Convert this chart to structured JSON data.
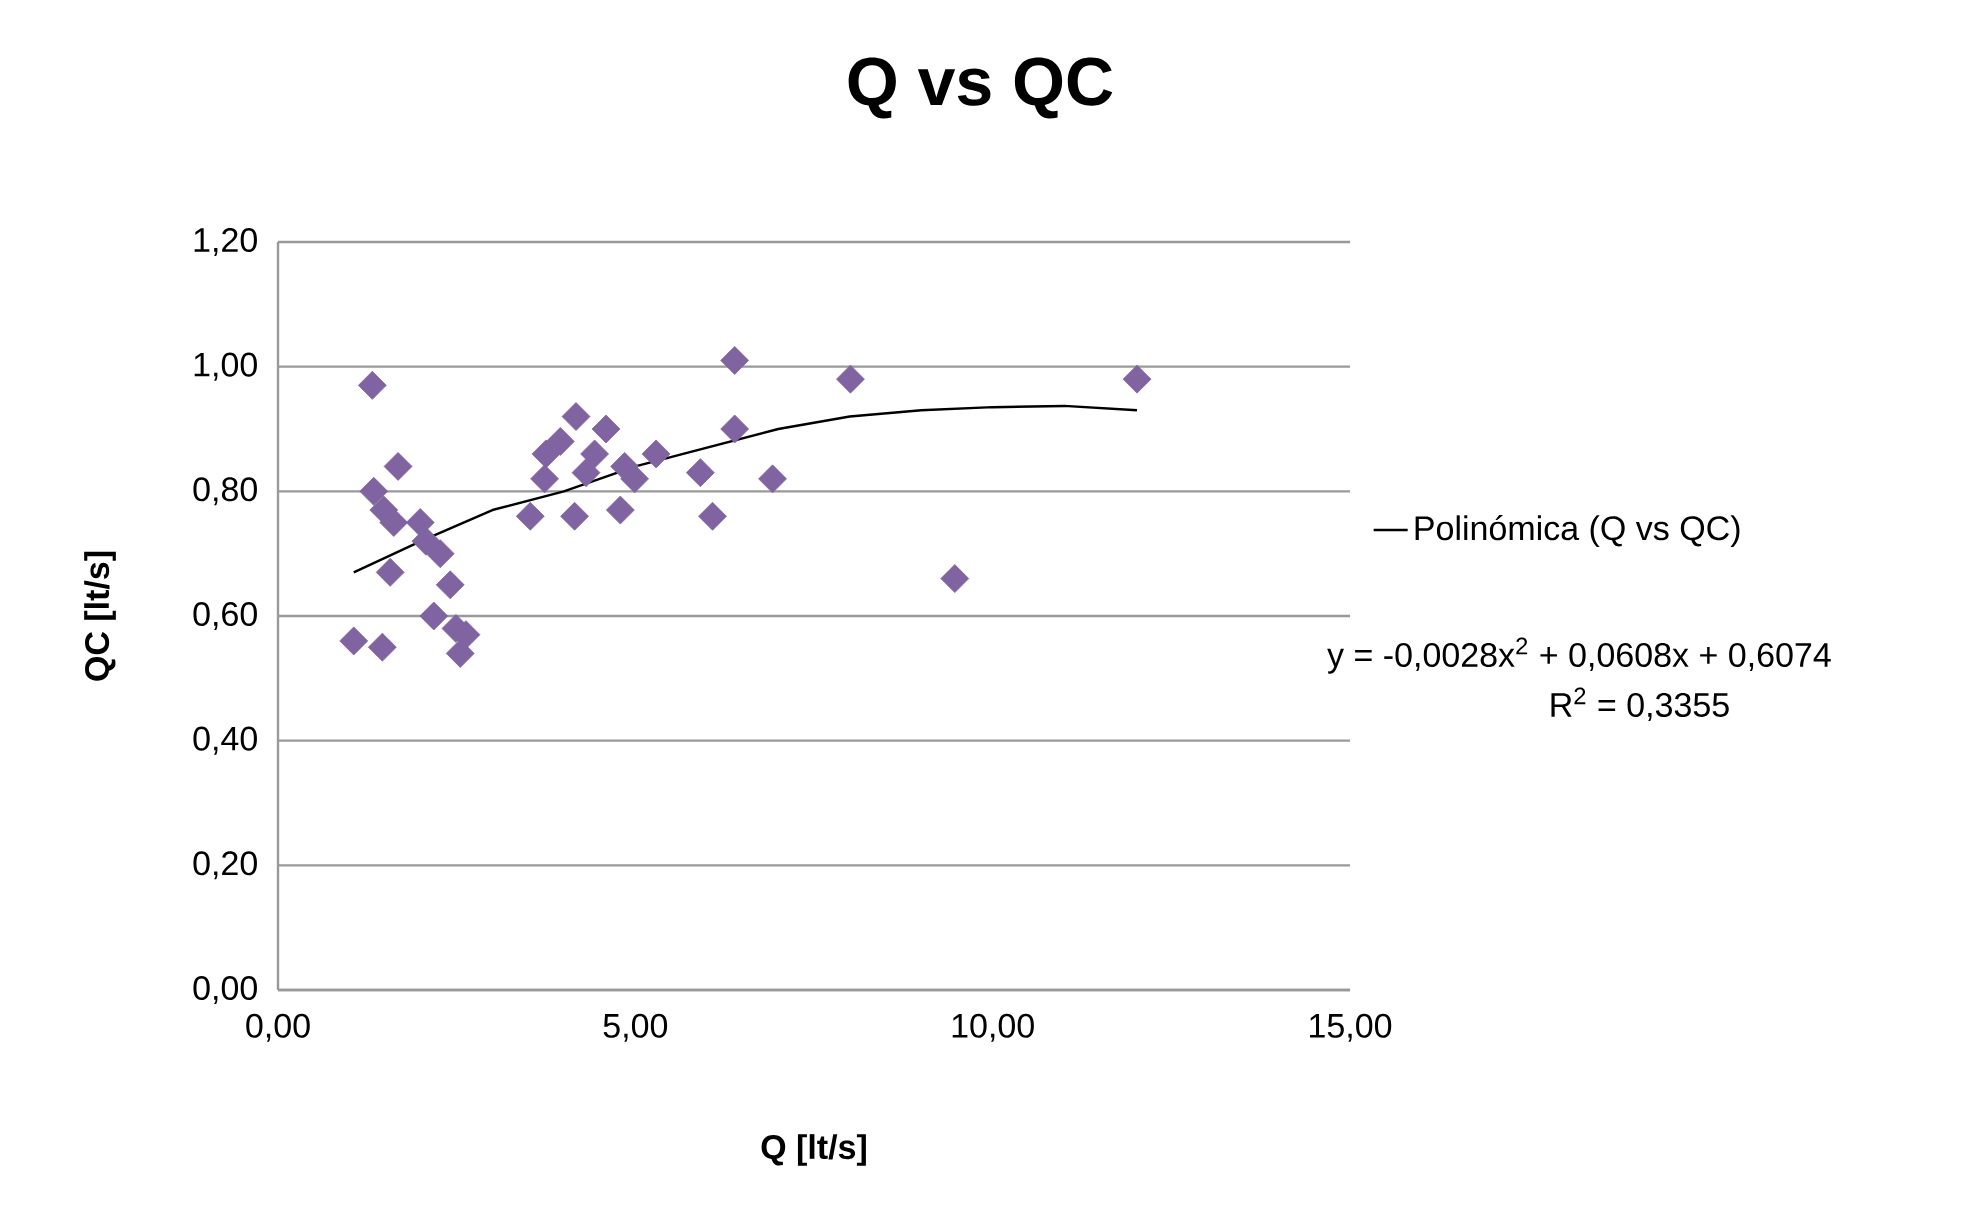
{
  "chart_data": {
    "type": "scatter",
    "title": "Q vs QC",
    "xlabel": "Q [lt/s]",
    "ylabel": "QC [lt/s]",
    "xlim": [
      0,
      15
    ],
    "ylim": [
      0,
      1.2
    ],
    "xticks": [
      {
        "value": 0,
        "label": "0,00"
      },
      {
        "value": 5,
        "label": "5,00"
      },
      {
        "value": 10,
        "label": "10,00"
      },
      {
        "value": 15,
        "label": "15,00"
      }
    ],
    "yticks": [
      {
        "value": 0,
        "label": "0,00"
      },
      {
        "value": 0.2,
        "label": "0,20"
      },
      {
        "value": 0.4,
        "label": "0,40"
      },
      {
        "value": 0.6,
        "label": "0,60"
      },
      {
        "value": 0.8,
        "label": "0,80"
      },
      {
        "value": 1.0,
        "label": "1,00"
      },
      {
        "value": 1.2,
        "label": "1,20"
      }
    ],
    "grid": "y",
    "legend": "right",
    "marker": "diamond",
    "series": [
      {
        "color": "#8064a2",
        "x": [
          1.32,
          1.68,
          1.34,
          1.48,
          1.62,
          1.99,
          2.07,
          2.27,
          1.57,
          2.41,
          2.18,
          2.49,
          2.63,
          2.55,
          1.06,
          1.46,
          3.53,
          4.15,
          3.73,
          3.75,
          3.95,
          4.17,
          4.59,
          4.43,
          4.31,
          4.79,
          4.85,
          4.99,
          5.29,
          5.91,
          6.08,
          6.39,
          6.39,
          6.92,
          8.01,
          9.47,
          12.02
        ],
        "values": [
          0.97,
          0.84,
          0.8,
          0.77,
          0.75,
          0.75,
          0.72,
          0.7,
          0.67,
          0.65,
          0.6,
          0.58,
          0.57,
          0.54,
          0.56,
          0.55,
          0.76,
          0.76,
          0.82,
          0.86,
          0.88,
          0.92,
          0.9,
          0.86,
          0.83,
          0.77,
          0.84,
          0.82,
          0.86,
          0.83,
          0.76,
          0.9,
          1.01,
          0.82,
          0.98,
          0.66,
          0.98
        ]
      },
      {
        "type": "line",
        "name": "Polinómica (Q vs QC)",
        "color": "#000000",
        "marker": "none",
        "x": [
          1.06,
          2,
          3,
          4,
          5,
          6,
          7,
          8,
          9,
          10,
          11,
          12.02
        ],
        "values": [
          0.67,
          0.72,
          0.77,
          0.8,
          0.84,
          0.87,
          0.9,
          0.92,
          0.93,
          0.935,
          0.937,
          0.93
        ]
      }
    ],
    "annotations": [
      "y = -0,0028x$^{2}$ + 0,0608x + 0,6074",
      "R$^{2}$ = 0,3355"
    ]
  }
}
